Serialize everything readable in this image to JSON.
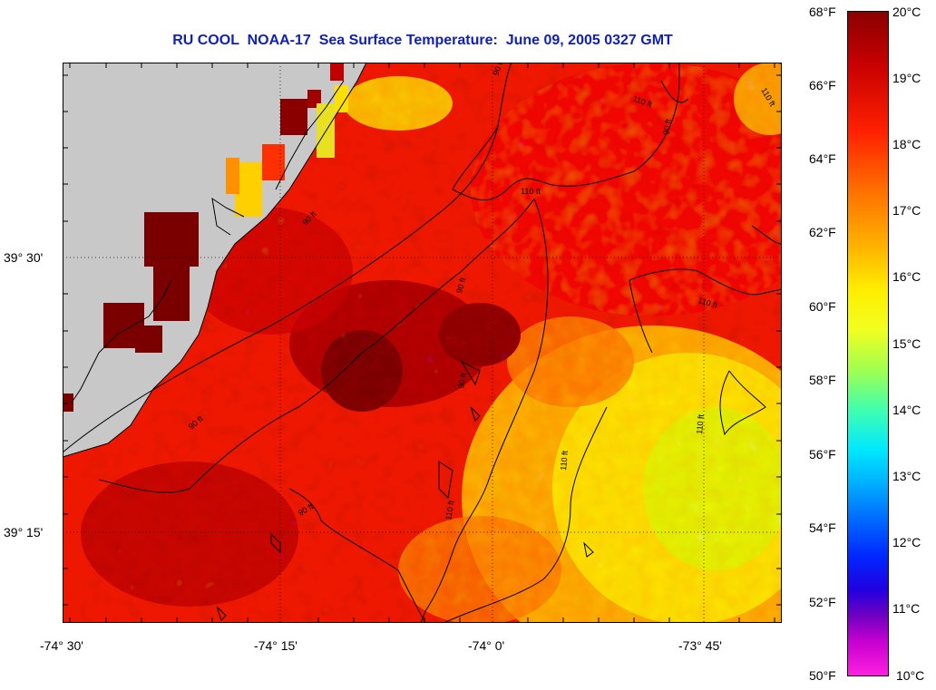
{
  "title": "RU COOL  NOAA-17  Sea Surface Temperature:  June 09, 2005 0327 GMT",
  "x_ticks": [
    "-74° 30'",
    "-74° 15'",
    "-74° 0'",
    "-73° 45'"
  ],
  "y_ticks": [
    "39° 30'",
    "39° 15'"
  ],
  "contour_labels": [
    "90 ft",
    "110 ft"
  ],
  "colorbar": {
    "fahrenheit": [
      "68°F",
      "66°F",
      "64°F",
      "62°F",
      "60°F",
      "58°F",
      "56°F",
      "54°F",
      "52°F",
      "50°F"
    ],
    "celsius": [
      "20°C",
      "19°C",
      "18°C",
      "17°C",
      "16°C",
      "15°C",
      "14°C",
      "13°C",
      "12°C",
      "11°C",
      "10°C"
    ]
  },
  "colors": {
    "land": "#c8c8c8",
    "title": "#1020b8"
  }
}
